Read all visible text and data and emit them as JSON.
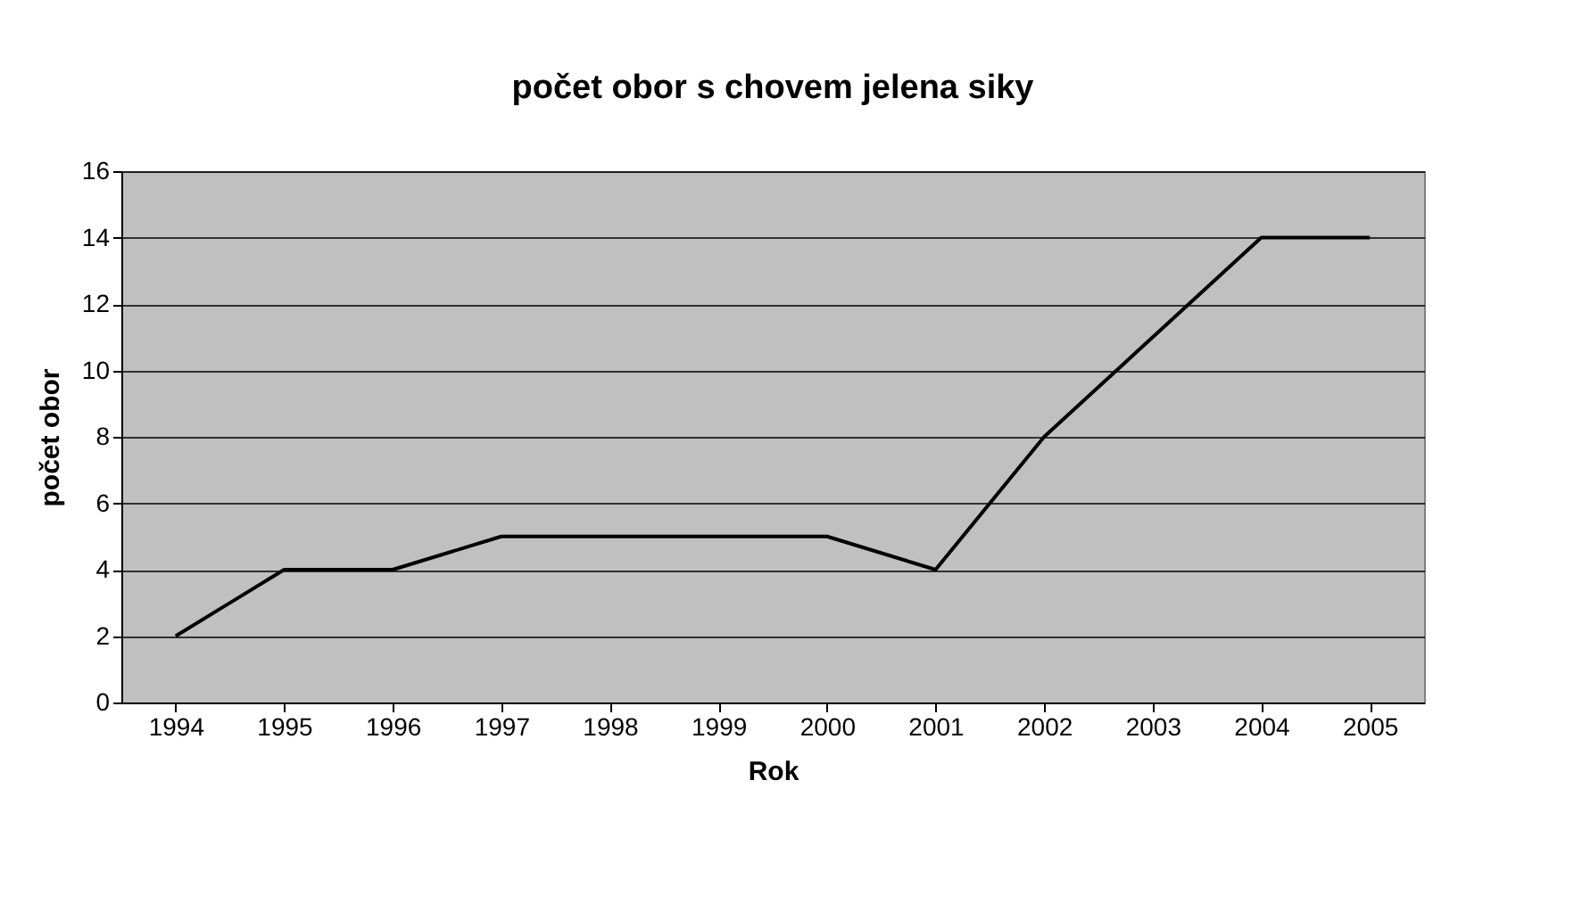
{
  "chart_data": {
    "type": "line",
    "title": "počet obor s chovem jelena siky",
    "xlabel": "Rok",
    "ylabel": "počet obor",
    "categories": [
      "1994",
      "1995",
      "1996",
      "1997",
      "1998",
      "1999",
      "2000",
      "2001",
      "2002",
      "2003",
      "2004",
      "2005"
    ],
    "series": [
      {
        "color": "#000000",
        "values": [
          2,
          4,
          4,
          5,
          5,
          5,
          5,
          4,
          8,
          11,
          14,
          14
        ]
      }
    ],
    "ylim": [
      0,
      16
    ],
    "yticks": [
      0,
      2,
      4,
      6,
      8,
      10,
      12,
      14,
      16
    ],
    "grid": "y",
    "marker": "none",
    "line_style": "solid"
  }
}
